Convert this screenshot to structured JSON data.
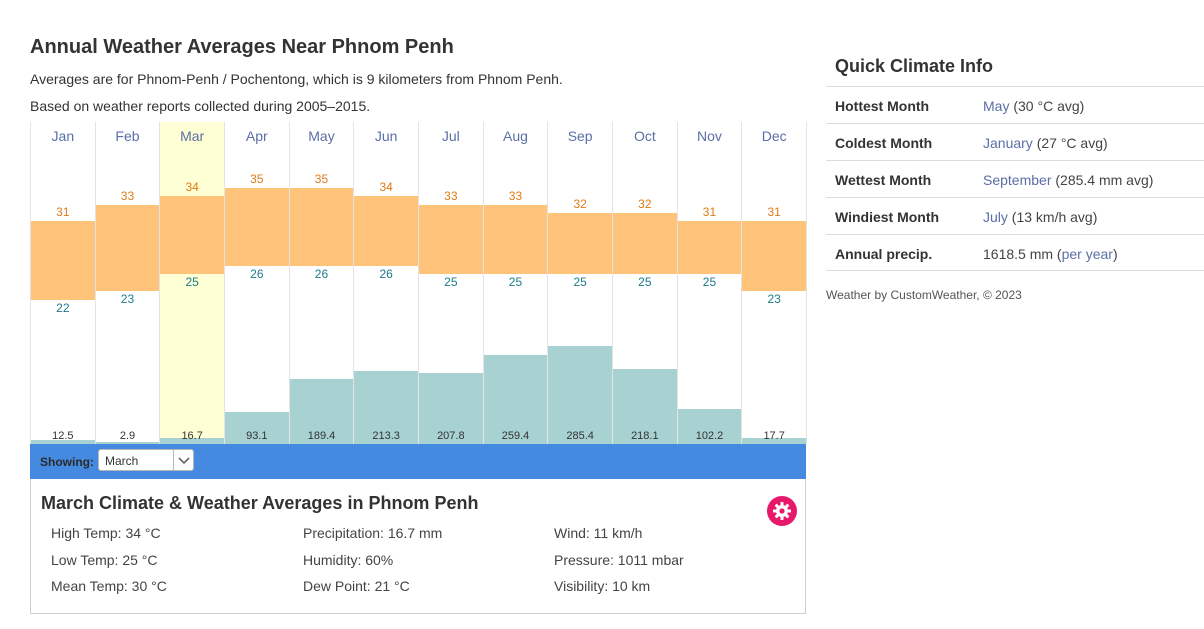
{
  "page": {
    "title": "Annual Weather Averages Near Phnom Penh",
    "subtitle1": "Averages are for Phnom-Penh / Pochentong, which is 9 kilometers from Phnom Penh.",
    "subtitle2": "Based on weather reports collected during 2005–2015."
  },
  "chart_data": {
    "type": "bar",
    "categories": [
      "Jan",
      "Feb",
      "Mar",
      "Apr",
      "May",
      "Jun",
      "Jul",
      "Aug",
      "Sep",
      "Oct",
      "Nov",
      "Dec"
    ],
    "series": [
      {
        "values": [
          31,
          33,
          34,
          35,
          35,
          34,
          33,
          33,
          32,
          32,
          31,
          31
        ]
      },
      {
        "values": [
          22,
          23,
          25,
          26,
          26,
          26,
          25,
          25,
          25,
          25,
          25,
          23
        ]
      },
      {
        "values": [
          12.5,
          2.9,
          16.7,
          93.1,
          189.4,
          213.3,
          207.8,
          259.4,
          285.4,
          218.1,
          102.2,
          17.7
        ]
      }
    ],
    "selected_index": 2,
    "colors": {
      "temp": "#ffc37a",
      "precip": "#a8d1d1",
      "selected": "#ffffd6",
      "high_text": "#e07b17",
      "low_text": "#1e7b8a"
    }
  },
  "showing": {
    "label": "Showing:",
    "selected": "March"
  },
  "details": {
    "title": "March Climate & Weather Averages in Phnom Penh",
    "high_temp": "High Temp: 34 °C",
    "low_temp": "Low Temp: 25 °C",
    "mean_temp": "Mean Temp: 30 °C",
    "precipitation": "Precipitation: 16.7 mm",
    "humidity": "Humidity: 60%",
    "dew_point": "Dew Point: 21 °C",
    "wind": "Wind: 11 km/h",
    "pressure": "Pressure: 1011 mbar",
    "visibility": "Visibility: 10 km"
  },
  "quick_info": {
    "title": "Quick Climate Info",
    "rows": [
      {
        "key": "Hottest Month",
        "link": "May",
        "rest": " (30 °C avg)"
      },
      {
        "key": "Coldest Month",
        "link": "January",
        "rest": " (27 °C avg)"
      },
      {
        "key": "Wettest Month",
        "link": "September",
        "rest": " (285.4 mm avg)"
      },
      {
        "key": "Windiest Month",
        "link": "July",
        "rest": " (13 km/h avg)"
      },
      {
        "key": "Annual precip.",
        "value": "1618.5 mm",
        "paren_open": " (",
        "link": "per year",
        "paren_close": ")"
      }
    ],
    "credit": "Weather by CustomWeather, © 2023"
  },
  "icons": {
    "dropdown": "chevron-down-icon",
    "settings": "gear-icon"
  }
}
